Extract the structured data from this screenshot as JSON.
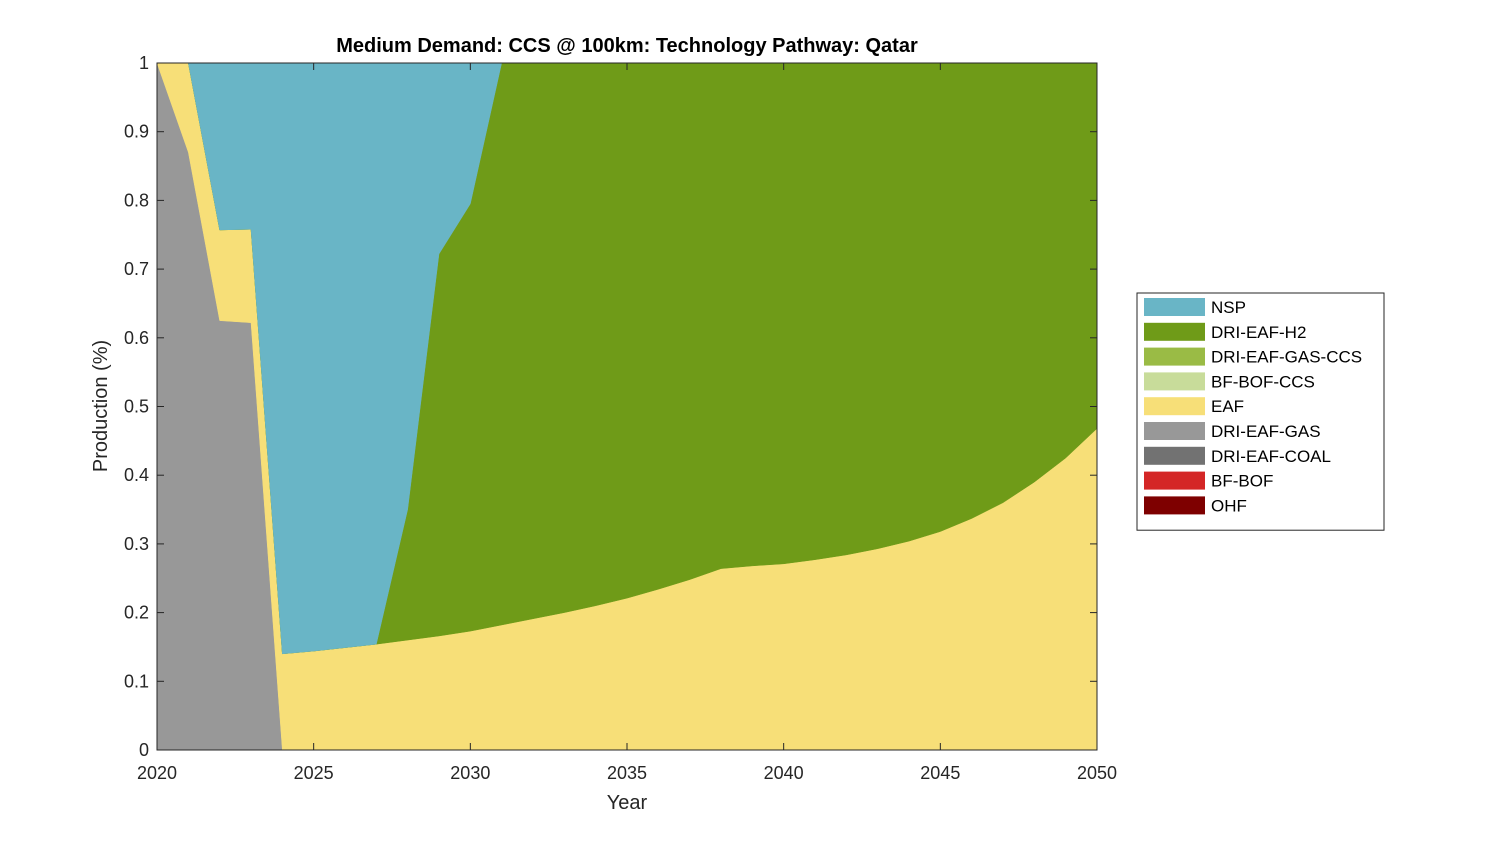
{
  "chart_data": {
    "type": "area",
    "title": "Medium Demand: CCS @ 100km: Technology Pathway: Qatar",
    "xlabel": "Year",
    "ylabel": "Production (%)",
    "xlim": [
      2020,
      2050
    ],
    "ylim": [
      0,
      1
    ],
    "xticks": [
      2020,
      2025,
      2030,
      2035,
      2040,
      2045,
      2050
    ],
    "yticks": [
      0,
      0.1,
      0.2,
      0.3,
      0.4,
      0.5,
      0.6,
      0.7,
      0.8,
      0.9,
      1
    ],
    "ytick_labels": [
      "0",
      "0.1",
      "0.2",
      "0.3",
      "0.4",
      "0.5",
      "0.6",
      "0.7",
      "0.8",
      "0.9",
      "1"
    ],
    "legend_position": "outside-right",
    "legend_order": [
      "NSP",
      "DRI-EAF-H2",
      "DRI-EAF-GAS-CCS",
      "BF-BOF-CCS",
      "EAF",
      "DRI-EAF-GAS",
      "DRI-EAF-COAL",
      "BF-BOF",
      "OHF"
    ],
    "x": [
      2020,
      2021,
      2022,
      2023,
      2024,
      2025,
      2026,
      2027,
      2028,
      2029,
      2030,
      2031,
      2032,
      2033,
      2034,
      2035,
      2036,
      2037,
      2038,
      2039,
      2040,
      2041,
      2042,
      2043,
      2044,
      2045,
      2046,
      2047,
      2048,
      2049,
      2050
    ],
    "series": [
      {
        "name": "OHF",
        "color": "#7e0000",
        "values": [
          0,
          0,
          0,
          0,
          0,
          0,
          0,
          0,
          0,
          0,
          0,
          0,
          0,
          0,
          0,
          0,
          0,
          0,
          0,
          0,
          0,
          0,
          0,
          0,
          0,
          0,
          0,
          0,
          0,
          0,
          0
        ]
      },
      {
        "name": "BF-BOF",
        "color": "#d42626",
        "values": [
          0,
          0,
          0,
          0,
          0,
          0,
          0,
          0,
          0,
          0,
          0,
          0,
          0,
          0,
          0,
          0,
          0,
          0,
          0,
          0,
          0,
          0,
          0,
          0,
          0,
          0,
          0,
          0,
          0,
          0,
          0
        ]
      },
      {
        "name": "DRI-EAF-COAL",
        "color": "#727272",
        "values": [
          0,
          0,
          0,
          0,
          0,
          0,
          0,
          0,
          0,
          0,
          0,
          0,
          0,
          0,
          0,
          0,
          0,
          0,
          0,
          0,
          0,
          0,
          0,
          0,
          0,
          0,
          0,
          0,
          0,
          0,
          0
        ]
      },
      {
        "name": "DRI-EAF-GAS",
        "color": "#989898",
        "values": [
          1.0,
          0.87,
          0.625,
          0.622,
          0,
          0,
          0,
          0,
          0,
          0,
          0,
          0,
          0,
          0,
          0,
          0,
          0,
          0,
          0,
          0,
          0,
          0,
          0,
          0,
          0,
          0,
          0,
          0,
          0,
          0,
          0
        ]
      },
      {
        "name": "EAF",
        "color": "#f7df78",
        "values": [
          0,
          0.13,
          0.132,
          0.136,
          0.14,
          0.144,
          0.149,
          0.154,
          0.16,
          0.166,
          0.173,
          0.182,
          0.191,
          0.2,
          0.21,
          0.221,
          0.234,
          0.248,
          0.264,
          0.268,
          0.271,
          0.277,
          0.284,
          0.293,
          0.304,
          0.318,
          0.337,
          0.36,
          0.39,
          0.425,
          0.468
        ]
      },
      {
        "name": "BF-BOF-CCS",
        "color": "#c8dc9a",
        "values": [
          0,
          0,
          0,
          0,
          0,
          0,
          0,
          0,
          0,
          0,
          0,
          0,
          0,
          0,
          0,
          0,
          0,
          0,
          0,
          0,
          0,
          0,
          0,
          0,
          0,
          0,
          0,
          0,
          0,
          0,
          0
        ]
      },
      {
        "name": "DRI-EAF-GAS-CCS",
        "color": "#9abb45",
        "values": [
          0,
          0,
          0,
          0,
          0,
          0,
          0,
          0,
          0,
          0,
          0,
          0,
          0,
          0,
          0,
          0,
          0,
          0,
          0,
          0,
          0,
          0,
          0,
          0,
          0,
          0,
          0,
          0,
          0,
          0,
          0
        ]
      },
      {
        "name": "DRI-EAF-H2",
        "color": "#6f9b18",
        "values": [
          0,
          0,
          0,
          0,
          0,
          0,
          0,
          0,
          0.19,
          0.556,
          0.622,
          0.818,
          0.809,
          0.8,
          0.79,
          0.779,
          0.766,
          0.752,
          0.736,
          0.732,
          0.729,
          0.723,
          0.716,
          0.707,
          0.696,
          0.682,
          0.663,
          0.64,
          0.61,
          0.575,
          0.532
        ]
      },
      {
        "name": "NSP",
        "color": "#69b5c6",
        "values": [
          0,
          0,
          0.243,
          0.242,
          0.86,
          0.856,
          0.851,
          0.846,
          0.65,
          0.278,
          0.205,
          0,
          0,
          0,
          0,
          0,
          0,
          0,
          0,
          0,
          0,
          0,
          0,
          0,
          0,
          0,
          0,
          0,
          0,
          0,
          0
        ]
      }
    ]
  }
}
